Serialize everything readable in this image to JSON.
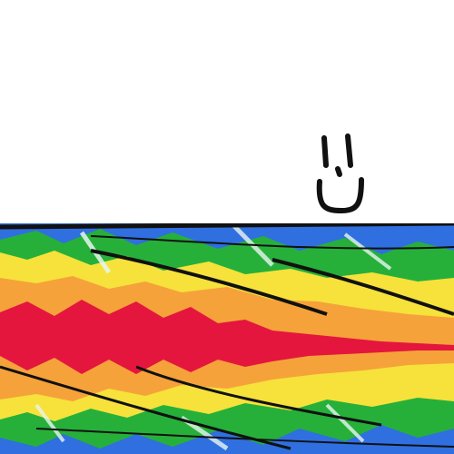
{
  "colors": {
    "background": "#ffffff",
    "ink": "#111111",
    "blue": "#2f6fe0",
    "green": "#26b03a",
    "yellow": "#f6e23a",
    "orange": "#f6a23a",
    "red": "#e4163e",
    "white_streak": "#e8f6f0"
  },
  "icons": {
    "face": "smiley-face-doodle",
    "band": "rainbow-speed-burst"
  }
}
